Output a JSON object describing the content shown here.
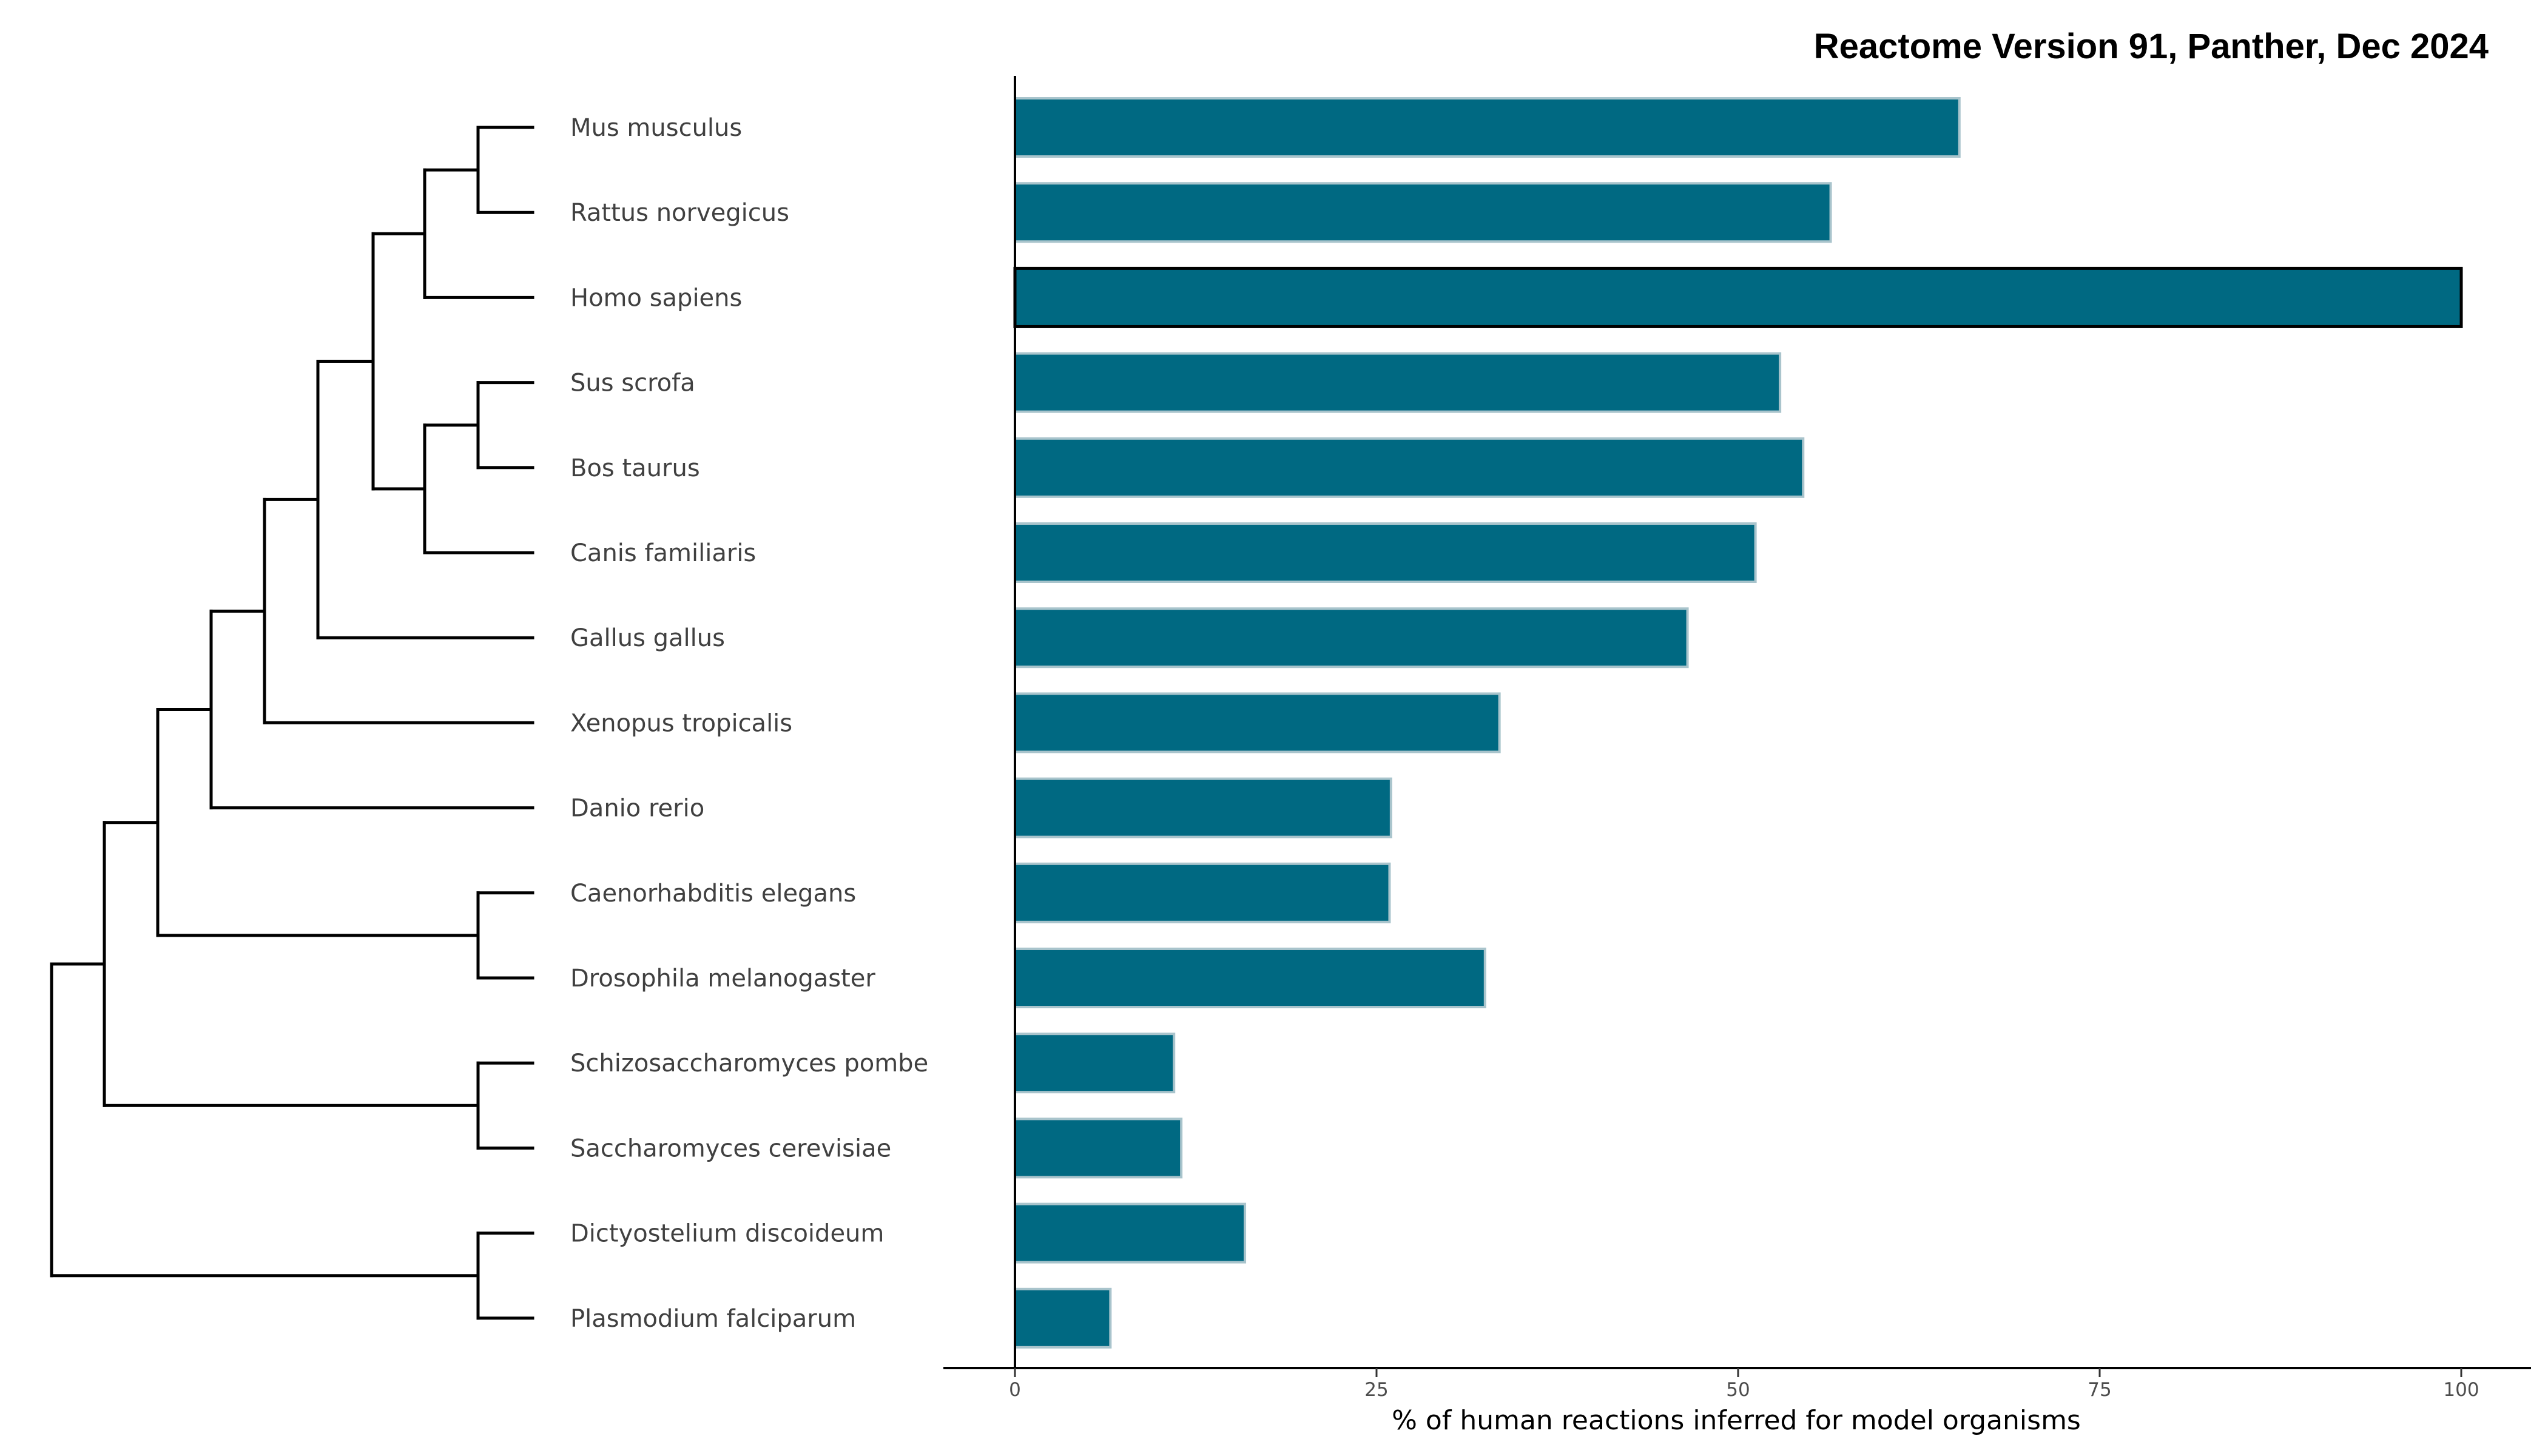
{
  "chart_data": {
    "type": "bar",
    "orientation": "horizontal",
    "title": "Reactome Version 91, Panther, Dec 2024",
    "xlabel": "% of human reactions inferred for model organisms",
    "ylabel": "",
    "xlim": [
      0,
      100
    ],
    "x_ticks": [
      0,
      25,
      50,
      75,
      100
    ],
    "bar_color": "#006982",
    "bar_edge_color": "#a9c4cc",
    "highlight_edge_color": "#000000",
    "highlight_category": "Homo sapiens",
    "categories": [
      "Mus musculus",
      "Rattus norvegicus",
      "Homo sapiens",
      "Sus scrofa",
      "Bos taurus",
      "Canis familiaris",
      "Gallus gallus",
      "Xenopus tropicalis",
      "Danio rerio",
      "Caenorhabditis elegans",
      "Drosophila melanogaster",
      "Schizosaccharomyces pombe",
      "Saccharomyces cerevisiae",
      "Dictyostelium discoideum",
      "Plasmodium falciparum"
    ],
    "values": [
      65.3,
      56.4,
      100,
      52.9,
      54.5,
      51.2,
      46.5,
      33.5,
      26.0,
      25.9,
      32.5,
      11.0,
      11.5,
      15.9,
      6.6
    ],
    "dendrogram": {
      "newick": "((((((((((Mus musculus,Rattus norvegicus),Homo sapiens),((Sus scrofa,Bos taurus),Canis familiaris)),Gallus gallus),Xenopus tropicalis),Danio rerio),(Caenorhabditis elegans,Drosophila melanogaster)),(Schizosaccharomyces pombe,Saccharomyces cerevisiae)),(Dictyostelium discoideum,Plasmodium falciparum));"
    }
  }
}
